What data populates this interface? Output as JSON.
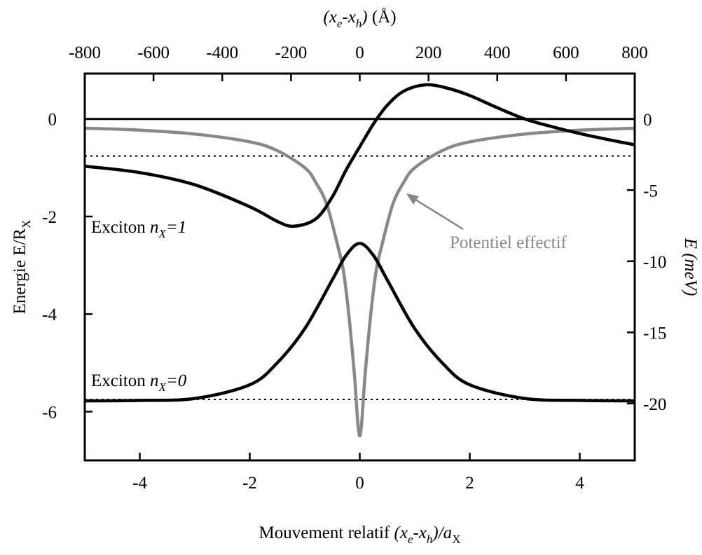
{
  "chart_data": {
    "type": "line",
    "xlabel": [
      {
        "t": "Mouvement relatif "
      },
      {
        "t": "(x",
        "i": true
      },
      {
        "t": "e",
        "i": true,
        "sub": true
      },
      {
        "t": "-x",
        "i": true
      },
      {
        "t": "h",
        "i": true,
        "sub": true
      },
      {
        "t": ")/a",
        "i": true
      },
      {
        "t": "X",
        "sub": true
      }
    ],
    "x2label": [
      {
        "t": "(x",
        "i": true
      },
      {
        "t": "e",
        "i": true,
        "sub": true
      },
      {
        "t": "-x",
        "i": true
      },
      {
        "t": "h",
        "i": true,
        "sub": true
      },
      {
        "t": ")",
        "i": true
      },
      {
        "t": " (Å)"
      }
    ],
    "ylabel": [
      {
        "t": "Energie E/R"
      },
      {
        "t": "X",
        "sub": true
      }
    ],
    "y2label": [
      {
        "t": "E (meV)",
        "i": true
      }
    ],
    "xlim": [
      -5,
      5
    ],
    "xticks": [
      -4,
      -2,
      0,
      2,
      4
    ],
    "x2lim": [
      -800,
      800
    ],
    "x2ticks": [
      -800,
      -600,
      -400,
      -200,
      0,
      200,
      400,
      600,
      800
    ],
    "ylim": [
      -7,
      0.93
    ],
    "yticks": [
      -6,
      -4,
      -2,
      0
    ],
    "y2lim": [
      -24,
      3.19
    ],
    "y2ticks": [
      -20,
      -15,
      -10,
      -5,
      0
    ],
    "reference_lines": [
      {
        "value": 0,
        "style": "solid"
      },
      {
        "value": -0.76,
        "style": "dotted"
      },
      {
        "value": -5.75,
        "style": "dotted"
      }
    ],
    "series": [
      {
        "color": "#888888",
        "x": [
          -5,
          -4,
          -3,
          -2,
          -1.5,
          -1,
          -0.8,
          -0.6,
          -0.4,
          -0.3,
          -0.2,
          -0.1,
          0,
          0.1,
          0.2,
          0.3,
          0.4,
          0.6,
          0.8,
          1,
          1.5,
          2,
          3,
          4,
          5
        ],
        "values": [
          -0.19,
          -0.23,
          -0.31,
          -0.47,
          -0.65,
          -1.0,
          -1.3,
          -1.75,
          -2.6,
          -3.1,
          -4.0,
          -5.2,
          -6.5,
          -5.2,
          -4.0,
          -3.1,
          -2.6,
          -1.75,
          -1.3,
          -1.0,
          -0.65,
          -0.47,
          -0.31,
          -0.23,
          -0.19
        ]
      },
      {
        "color": "#000000",
        "x": [
          -5,
          -4,
          -3,
          -2,
          -1.5,
          -1,
          -0.5,
          -0.25,
          0,
          0.25,
          0.5,
          1,
          1.5,
          2,
          3,
          4,
          5
        ],
        "values": [
          -5.78,
          -5.77,
          -5.73,
          -5.45,
          -5.0,
          -4.3,
          -3.3,
          -2.8,
          -2.55,
          -2.8,
          -3.3,
          -4.3,
          -5.0,
          -5.45,
          -5.73,
          -5.77,
          -5.78
        ]
      },
      {
        "color": "#000000",
        "x": [
          -5,
          -4,
          -3,
          -2,
          -1.5,
          -1.2,
          -0.8,
          -0.5,
          -0.25,
          0,
          0.25,
          0.5,
          0.8,
          1.2,
          1.6,
          2,
          2.5,
          3,
          3.5,
          4,
          4.5,
          5
        ],
        "values": [
          -0.97,
          -1.1,
          -1.35,
          -1.8,
          -2.1,
          -2.2,
          -2.05,
          -1.6,
          -1.05,
          -0.57,
          -0.1,
          0.28,
          0.57,
          0.7,
          0.63,
          0.48,
          0.23,
          0.0,
          -0.16,
          -0.3,
          -0.42,
          -0.53
        ]
      }
    ],
    "annotations": [
      {
        "text": [
          {
            "t": "Exciton "
          },
          {
            "t": "n",
            "i": true
          },
          {
            "t": "X",
            "i": true,
            "sub": true
          },
          {
            "t": "=1",
            "i": true
          }
        ]
      },
      {
        "text": [
          {
            "t": "Exciton "
          },
          {
            "t": "n",
            "i": true
          },
          {
            "t": "X",
            "i": true,
            "sub": true
          },
          {
            "t": "=0",
            "i": true
          }
        ]
      },
      {
        "text": [
          {
            "t": "Potentiel effectif"
          }
        ],
        "color": "#888888"
      }
    ]
  }
}
